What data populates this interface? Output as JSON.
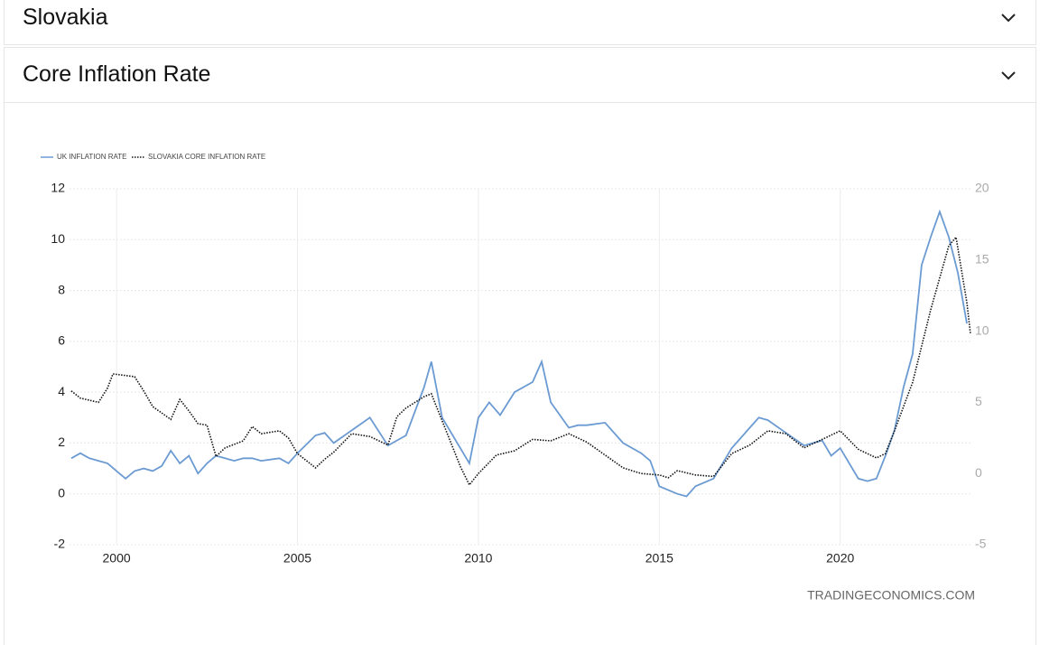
{
  "sections": [
    {
      "title": "Slovakia"
    },
    {
      "title": "Core Inflation Rate"
    }
  ],
  "watermark": "TRADINGECONOMICS.COM",
  "chart_data": {
    "type": "line",
    "grid": true,
    "legend": "top-left",
    "xlim": [
      1998.7,
      2023.6
    ],
    "xticks": [
      2000,
      2005,
      2010,
      2015,
      2020
    ],
    "ylim": [
      -2,
      12
    ],
    "yticks": [
      -2,
      0,
      2,
      4,
      6,
      8,
      10,
      12
    ],
    "y2lim": [
      -5,
      20
    ],
    "y2ticks": [
      -5,
      0,
      5,
      10,
      15,
      20
    ],
    "series": [
      {
        "name": "UK INFLATION RATE",
        "color": "#6b9bd2",
        "x": [
          1998.75,
          1999.0,
          1999.25,
          1999.5,
          1999.75,
          2000.0,
          2000.25,
          2000.5,
          2000.75,
          2001.0,
          2001.25,
          2001.5,
          2001.75,
          2002.0,
          2002.25,
          2002.5,
          2002.75,
          2003.0,
          2003.25,
          2003.5,
          2003.75,
          2004.0,
          2004.5,
          2004.75,
          2005.0,
          2005.5,
          2005.75,
          2006.0,
          2006.5,
          2007.0,
          2007.5,
          2007.75,
          2008.0,
          2008.5,
          2008.7,
          2009.0,
          2009.5,
          2009.75,
          2010.0,
          2010.3,
          2010.6,
          2011.0,
          2011.5,
          2011.75,
          2012.0,
          2012.5,
          2012.75,
          2013.0,
          2013.5,
          2014.0,
          2014.5,
          2014.75,
          2015.0,
          2015.5,
          2015.75,
          2016.0,
          2016.5,
          2017.0,
          2017.5,
          2017.75,
          2018.0,
          2018.5,
          2019.0,
          2019.5,
          2019.75,
          2020.0,
          2020.5,
          2020.75,
          2021.0,
          2021.25,
          2021.5,
          2021.75,
          2022.0,
          2022.25,
          2022.5,
          2022.75,
          2023.0,
          2023.25,
          2023.5
        ],
        "values": [
          1.4,
          1.6,
          1.4,
          1.3,
          1.2,
          0.9,
          0.6,
          0.9,
          1.0,
          0.9,
          1.1,
          1.7,
          1.2,
          1.5,
          0.8,
          1.2,
          1.5,
          1.4,
          1.3,
          1.4,
          1.4,
          1.3,
          1.4,
          1.2,
          1.6,
          2.3,
          2.4,
          2.0,
          2.5,
          3.0,
          1.9,
          2.1,
          2.3,
          4.2,
          5.2,
          3.0,
          1.8,
          1.2,
          3.0,
          3.6,
          3.1,
          4.0,
          4.4,
          5.2,
          3.6,
          2.6,
          2.7,
          2.7,
          2.8,
          2.0,
          1.6,
          1.3,
          0.3,
          0.0,
          -0.1,
          0.3,
          0.6,
          1.8,
          2.6,
          3.0,
          2.9,
          2.4,
          1.9,
          2.1,
          1.5,
          1.8,
          0.6,
          0.5,
          0.6,
          1.5,
          2.5,
          4.2,
          5.5,
          9.0,
          10.1,
          11.1,
          10.1,
          8.7,
          6.7
        ]
      },
      {
        "name": "SLOVAKIA CORE INFLATION RATE",
        "color": "#111111",
        "axis": "y2",
        "x": [
          1998.75,
          1999.0,
          1999.5,
          1999.75,
          1999.9,
          2000.5,
          2000.75,
          2001.0,
          2001.5,
          2001.75,
          2002.0,
          2002.25,
          2002.5,
          2002.75,
          2003.0,
          2003.5,
          2003.75,
          2004.0,
          2004.5,
          2004.75,
          2005.0,
          2005.5,
          2005.75,
          2006.0,
          2006.5,
          2007.0,
          2007.5,
          2007.75,
          2008.0,
          2008.5,
          2008.7,
          2009.0,
          2009.5,
          2009.75,
          2010.0,
          2010.5,
          2011.0,
          2011.5,
          2012.0,
          2012.5,
          2013.0,
          2013.5,
          2014.0,
          2014.5,
          2015.0,
          2015.25,
          2015.5,
          2016.0,
          2016.5,
          2017.0,
          2017.5,
          2018.0,
          2018.5,
          2019.0,
          2019.5,
          2020.0,
          2020.5,
          2021.0,
          2021.25,
          2021.5,
          2022.0,
          2022.5,
          2023.0,
          2023.2,
          2023.5,
          2023.6
        ],
        "values": [
          5.8,
          5.3,
          5.0,
          6.0,
          7.0,
          6.8,
          5.8,
          4.7,
          3.8,
          5.2,
          4.4,
          3.5,
          3.4,
          1.2,
          1.8,
          2.3,
          3.3,
          2.8,
          3.0,
          2.5,
          1.4,
          0.4,
          1.0,
          1.5,
          2.8,
          2.6,
          2.0,
          4.0,
          4.6,
          5.4,
          5.6,
          3.7,
          0.5,
          -0.8,
          0.0,
          1.3,
          1.6,
          2.4,
          2.3,
          2.8,
          2.2,
          1.3,
          0.4,
          0.0,
          -0.1,
          -0.3,
          0.2,
          -0.1,
          -0.2,
          1.4,
          2.0,
          3.0,
          2.8,
          1.8,
          2.4,
          3.0,
          1.7,
          1.1,
          1.4,
          3.0,
          6.4,
          11.5,
          16.0,
          16.6,
          12.0,
          9.8
        ]
      }
    ]
  }
}
